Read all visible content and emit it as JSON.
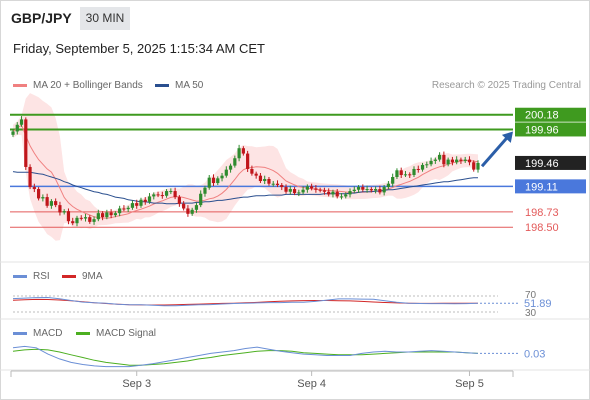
{
  "header": {
    "symbol": "GBP/JPY",
    "timeframe": "30 MIN",
    "datetime": "Friday, September 5, 2025 1:15:34 AM CET"
  },
  "credit": "Research © 2025 Trading Central",
  "colors": {
    "ma20": "#f08080",
    "ma50": "#2a4f8f",
    "band_fill": "#fde4e4",
    "bull": "#2e8b2e",
    "bear": "#c0161b",
    "resistance": "#3f9a1f",
    "pivot_line": "#4a78dc",
    "support": "#e35a5a",
    "arrow": "#2b5ea8",
    "rsi": "#6b8fd6",
    "rsi_ma": "#d22727",
    "macd": "#6b8fd6",
    "macd_signal": "#4caf20",
    "price_tag": "#222222"
  },
  "chart_data": [
    {
      "type": "candlestick",
      "title": "GBP/JPY",
      "legend": [
        "MA 20 + Bollinger Bands",
        "MA 50"
      ],
      "ylim": [
        198.1,
        200.4
      ],
      "x_ticks": [
        "Sep 3",
        "Sep 4",
        "Sep 5"
      ],
      "levels": [
        {
          "value": 200.18,
          "label": "200.18",
          "kind": "resistance"
        },
        {
          "value": 199.96,
          "label": "199.96",
          "kind": "resistance"
        },
        {
          "value": 199.46,
          "label": "199.46",
          "kind": "last"
        },
        {
          "value": 199.11,
          "label": "199.11",
          "kind": "pivot"
        },
        {
          "value": 198.73,
          "label": "198.73",
          "kind": "support"
        },
        {
          "value": 198.5,
          "label": "198.50",
          "kind": "support"
        }
      ],
      "close": [
        199.93,
        200.03,
        200.11,
        199.4,
        199.1,
        199.07,
        198.93,
        198.95,
        198.82,
        198.89,
        198.83,
        198.72,
        198.74,
        198.59,
        198.56,
        198.64,
        198.63,
        198.65,
        198.58,
        198.62,
        198.71,
        198.65,
        198.72,
        198.68,
        198.71,
        198.78,
        198.77,
        198.79,
        198.86,
        198.82,
        198.91,
        198.88,
        198.96,
        198.99,
        198.98,
        198.97,
        199.04,
        199.04,
        198.95,
        198.85,
        198.78,
        198.7,
        198.76,
        198.83,
        199.0,
        199.09,
        199.24,
        199.16,
        199.23,
        199.27,
        199.36,
        199.42,
        199.53,
        199.68,
        199.6,
        199.37,
        199.3,
        199.27,
        199.19,
        199.22,
        199.15,
        199.15,
        199.13,
        199.1,
        199.03,
        199.07,
        199.01,
        199.02,
        199.06,
        199.11,
        199.08,
        199.06,
        199.05,
        199.03,
        198.99,
        199.03,
        198.96,
        198.96,
        198.99,
        199.04,
        199.06,
        199.1,
        199.06,
        199.07,
        199.05,
        199.07,
        199.02,
        199.1,
        199.15,
        199.25,
        199.35,
        199.28,
        199.29,
        199.28,
        199.37,
        199.36,
        199.43,
        199.44,
        199.49,
        199.51,
        199.58,
        199.44,
        199.51,
        199.47,
        199.51,
        199.49,
        199.51,
        199.47,
        199.36,
        199.46
      ],
      "ma50": [
        199.33,
        199.32,
        199.32,
        199.32,
        199.32,
        199.31,
        199.3,
        199.29,
        199.27,
        199.25,
        199.23,
        199.21,
        199.18,
        199.16,
        199.13,
        199.11,
        199.09,
        199.07,
        199.05,
        199.03,
        199.02,
        199.0,
        198.99,
        198.97,
        198.95,
        198.94,
        198.93,
        198.91,
        198.9,
        198.89,
        198.88,
        198.88,
        198.87,
        198.86,
        198.86,
        198.86,
        198.85,
        198.85,
        198.85,
        198.86,
        198.86,
        198.86,
        198.86,
        198.87,
        198.87,
        198.88,
        198.88,
        198.89,
        198.9,
        198.9,
        198.91,
        198.92,
        198.93,
        198.94,
        198.95,
        198.95,
        198.96,
        198.97,
        198.97,
        198.97,
        198.98,
        198.98,
        198.98,
        198.98,
        198.99,
        198.99,
        198.99,
        198.99,
        198.99,
        198.99,
        198.99,
        198.99,
        198.99,
        199.0,
        199.0,
        199.0,
        199.0,
        199.0,
        199.0,
        199.01,
        199.01,
        199.02,
        199.03,
        199.03,
        199.03,
        199.04,
        199.04,
        199.05,
        199.06,
        199.06,
        199.07,
        199.08,
        199.09,
        199.1,
        199.11,
        199.12,
        199.13,
        199.14,
        199.15,
        199.16,
        199.17,
        199.18,
        199.18,
        199.19,
        199.2,
        199.21,
        199.22,
        199.23,
        199.24,
        199.24
      ],
      "forecast": {
        "from": 199.41,
        "to": 199.93
      }
    },
    {
      "type": "line",
      "title": "RSI",
      "legend": [
        "RSI",
        "9MA"
      ],
      "ylim": [
        30,
        70
      ],
      "y_ticks": [
        30,
        70
      ],
      "last_value": "51.89",
      "rsi": [
        63.48,
        64.69,
        65.92,
        66.17,
        63.1,
        58.69,
        54.65,
        53.34,
        51.72,
        49.52,
        48.08,
        48.31,
        46.76,
        45.87,
        45.81,
        46.64,
        47.98,
        48.61,
        49.91,
        51.21,
        51.86,
        52.67,
        53.52,
        53.54,
        54.31,
        54.56,
        56.38,
        59.82,
        62.68,
        62.78,
        62.28,
        61.63,
        58.09,
        54.45,
        51.74,
        51.26,
        50.93,
        50.99,
        50.6,
        51.05,
        51.89
      ],
      "ma9": [
        59.35,
        60.43,
        61.42,
        61.24,
        60.03,
        57.98,
        55.49,
        53.09,
        51.15,
        49.59,
        48.34,
        47.63,
        47.48,
        47.55,
        48.26,
        49.05,
        49.71,
        50.61,
        51.44,
        52.11,
        52.89,
        54.09,
        55.58,
        56.79,
        57.72,
        58.62,
        58.75,
        58.67,
        58.34,
        57.69,
        56.53,
        55.0,
        53.75,
        52.73,
        51.99,
        51.49,
        51.45,
        51.63,
        51.81,
        51.86,
        51.89
      ]
    },
    {
      "type": "line",
      "title": "MACD",
      "legend": [
        "MACD",
        "MACD Signal"
      ],
      "last_value": "0.03",
      "macd": [
        0.11,
        0.13,
        0.11,
        0.02,
        -0.05,
        -0.1,
        -0.13,
        -0.15,
        -0.16,
        -0.16,
        -0.16,
        -0.14,
        -0.12,
        -0.09,
        -0.06,
        -0.03,
        0.0,
        0.03,
        0.05,
        0.07,
        0.1,
        0.12,
        0.09,
        0.06,
        0.04,
        0.02,
        0.01,
        0.0,
        0.0,
        0.0,
        0.03,
        0.05,
        0.06,
        0.05,
        0.05,
        0.06,
        0.07,
        0.06,
        0.05,
        0.04,
        0.03
      ],
      "signal": [
        0.06,
        0.08,
        0.09,
        0.08,
        0.05,
        0.01,
        -0.03,
        -0.07,
        -0.1,
        -0.12,
        -0.14,
        -0.14,
        -0.13,
        -0.12,
        -0.1,
        -0.08,
        -0.05,
        -0.03,
        0.0,
        0.02,
        0.04,
        0.06,
        0.07,
        0.07,
        0.06,
        0.04,
        0.03,
        0.02,
        0.01,
        0.01,
        0.01,
        0.02,
        0.03,
        0.04,
        0.05,
        0.05,
        0.05,
        0.05,
        0.05,
        0.04,
        0.03
      ]
    }
  ]
}
